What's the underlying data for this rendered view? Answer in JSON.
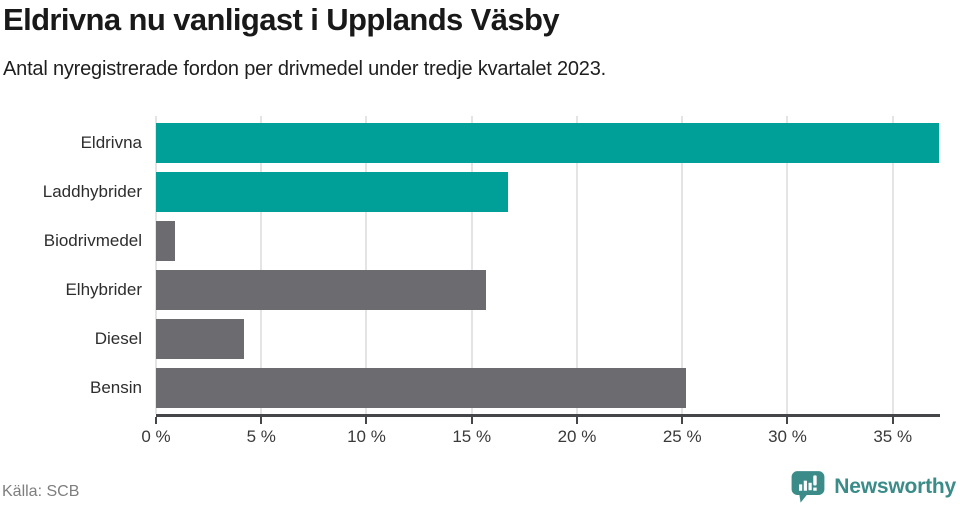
{
  "chart_data": {
    "type": "bar",
    "orientation": "horizontal",
    "title": "Eldrivna nu vanligast i Upplands Väsby",
    "subtitle": "Antal nyregistrerade fordon per drivmedel under tredje kvartalet 2023.",
    "categories": [
      "Eldrivna",
      "Laddhybrider",
      "Biodrivmedel",
      "Elhybrider",
      "Diesel",
      "Bensin"
    ],
    "values": [
      37.2,
      16.7,
      0.9,
      15.7,
      4.2,
      25.2
    ],
    "bar_colors": [
      "#00A099",
      "#00A099",
      "#6C6C70",
      "#6C6C70",
      "#6C6C70",
      "#6C6C70"
    ],
    "x_tick_values": [
      0,
      5,
      10,
      15,
      20,
      25,
      30,
      35
    ],
    "x_tick_labels": [
      "0 %",
      "5 %",
      "10 %",
      "15 %",
      "20 %",
      "25 %",
      "30 %",
      "35 %"
    ],
    "xlim": [
      0,
      37.2
    ],
    "xlabel": "",
    "ylabel": "",
    "grid": "vertical-light",
    "legend": "none"
  },
  "footer": {
    "source": "Källa: SCB",
    "brand": "Newsworthy"
  },
  "colors": {
    "accent_teal": "#00A099",
    "bar_gray": "#6C6C70",
    "brand_teal": "#3B8C89",
    "axis": "#45464A",
    "gridline": "#E4E4E4",
    "title_text": "#191919",
    "source_text": "#7E7E7E"
  },
  "icons": {
    "brand_logo": "newsworthy-speech-bubble-bar-chart-icon"
  }
}
